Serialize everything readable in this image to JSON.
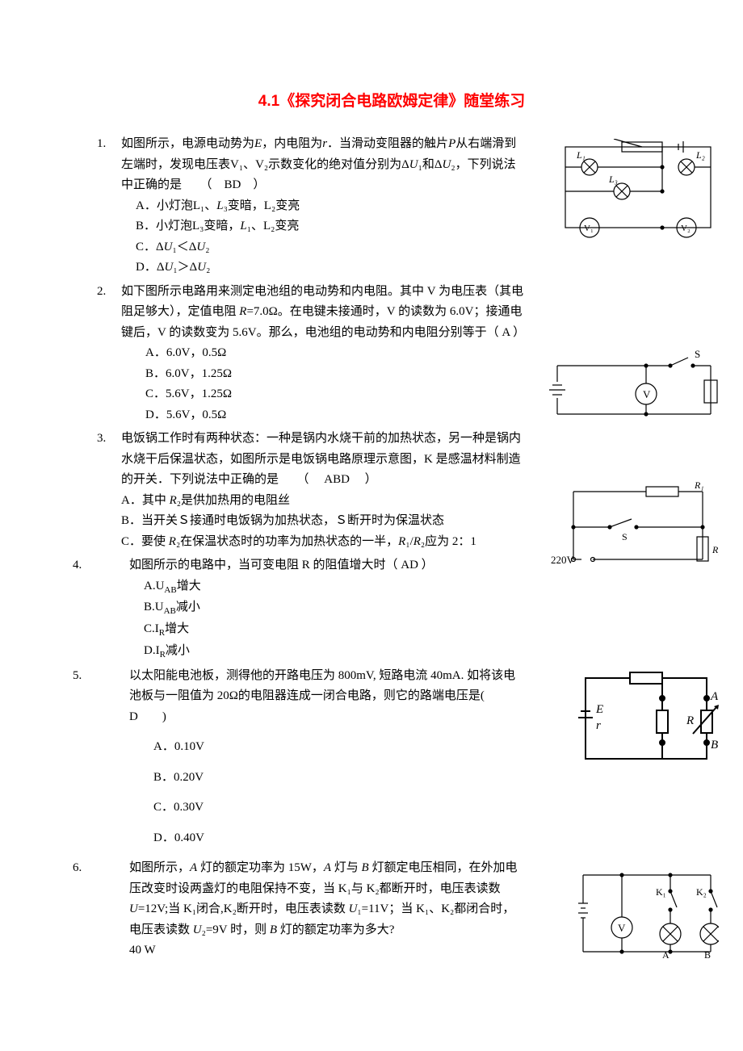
{
  "title": "4.1《探究闭合电路欧姆定律》随堂练习",
  "questions": [
    {
      "num": "1.",
      "text": "如图所示，电源电动势为<i>E</i>，内电阻为<i>r</i>．当滑动变阻器的触片<i>P</i>从右端滑到左端时，发现电压表V₁、V₂示数变化的绝对值分别为Δ<i>U</i>₁和Δ<i>U</i>₂，下列说法中正确的是　　（　BD　）",
      "opts": [
        "A．小灯泡L₁、<i>L</i>₃变暗，L₂变亮",
        "B．小灯泡L₃变暗，<i>L</i>₁、L₂变亮",
        "C．Δ<i>U</i>₁＜Δ<i>U</i>₂",
        "D．Δ<i>U</i>₁＞Δ<i>U</i>₂"
      ],
      "opt_class": "opt"
    },
    {
      "num": "2.",
      "text": "如下图所示电路用来测定电池组的电动势和内电阻。其中 V 为电压表（其电阻足够大），定值电阻 <i>R</i>=7.0Ω。在电键未接通时，V 的读数为 6.0V；接通电键后，V 的读数变为 5.6V。那么，电池组的电动势和内电阻分别等于（ A ）",
      "opts": [
        "A．6.0V，0.5Ω",
        "B．6.0V，1.25Ω",
        "C．5.6V，1.25Ω",
        "D．5.6V，0.5Ω"
      ],
      "opt_class": "opt2"
    },
    {
      "num": "3.",
      "text": "电饭锅工作时有两种状态：一种是锅内水烧干前的加热状态，另一种是锅内水烧干后保温状态，如图所示是电饭锅电路原理示意图，K 是感温材料制造的开关．下列说法中正确的是　　（　 ABD　 ）",
      "opts": [
        "A．其中 <i>R</i>₂是供加热用的电阻丝",
        "B．当开关Ｓ接通时电饭锅为加热状态，Ｓ断开时为保温状态",
        "C．要使 <i>R</i>₂在保温状态时的功率为加热状态的一半，<i>R</i>₁/<i>R</i>₂应为 2：1"
      ],
      "opt_class": "opt",
      "opts_nopad": true
    },
    {
      "num": "4.",
      "text": "如图所示的电路中，当可变电阻 R 的阻值增大时（ AD  ）",
      "opts": [
        "A.U<sub>AB</sub>增大",
        "B.U<sub>AB</sub>减小",
        "C.I<sub>R</sub>增大",
        "D.I<sub>R</sub>减小"
      ],
      "opt_class": "opt",
      "cls": "q4"
    },
    {
      "num": "5.",
      "text": "以太阳能电池板，测得他的开路电压为 800mV, 短路电流 40mA. 如将该电池板与一阻值为 20Ω的电阻器连成一闭合电路，则它的路端电压是(　 D　　)",
      "opts": [
        "A．0.10V",
        "B．0.20V",
        "C．0.30V",
        "D．0.40V"
      ],
      "opt_class": "opt2",
      "spaced": true,
      "cls": "q5"
    },
    {
      "num": "6.",
      "text": "如图所示，<i>A</i> 灯的额定功率为 15W，<i>A</i> 灯与 <i>B</i> 灯额定电压相同，在外加电压改变时设两盏灯的电阻保持不变，当 K₁与 K₂都断开时，电压表读数<i>U</i>=12V;当 K₁闭合,K₂断开时，电压表读数 <i>U</i>₁=11V；当 K₁、K₂都闭合时，电压表读数 <i>U</i>₂=9V 时，则 <i>B</i> 灯的额定功率为多大?",
      "after": "40 W",
      "cls": "q6"
    }
  ],
  "fig_labels": {
    "f1": {
      "L1": "L₁",
      "L2": "L₂",
      "L3": "L₃",
      "V1": "V₁",
      "V2": "V₂"
    },
    "f2": {
      "S": "S",
      "V": "V"
    },
    "f3": {
      "R1": "R₁",
      "R2": "R₂",
      "S": "S",
      "V": "220V"
    },
    "f5": {
      "E": "E",
      "r": "r",
      "A": "A",
      "B": "B",
      "R": "R"
    },
    "f6": {
      "V": "V",
      "K1": "K₁",
      "K2": "K₂",
      "A": "A",
      "B": "B"
    }
  },
  "colors": {
    "title": "#ff0000",
    "text": "#000000",
    "bg": "#ffffff",
    "stroke": "#000000"
  }
}
